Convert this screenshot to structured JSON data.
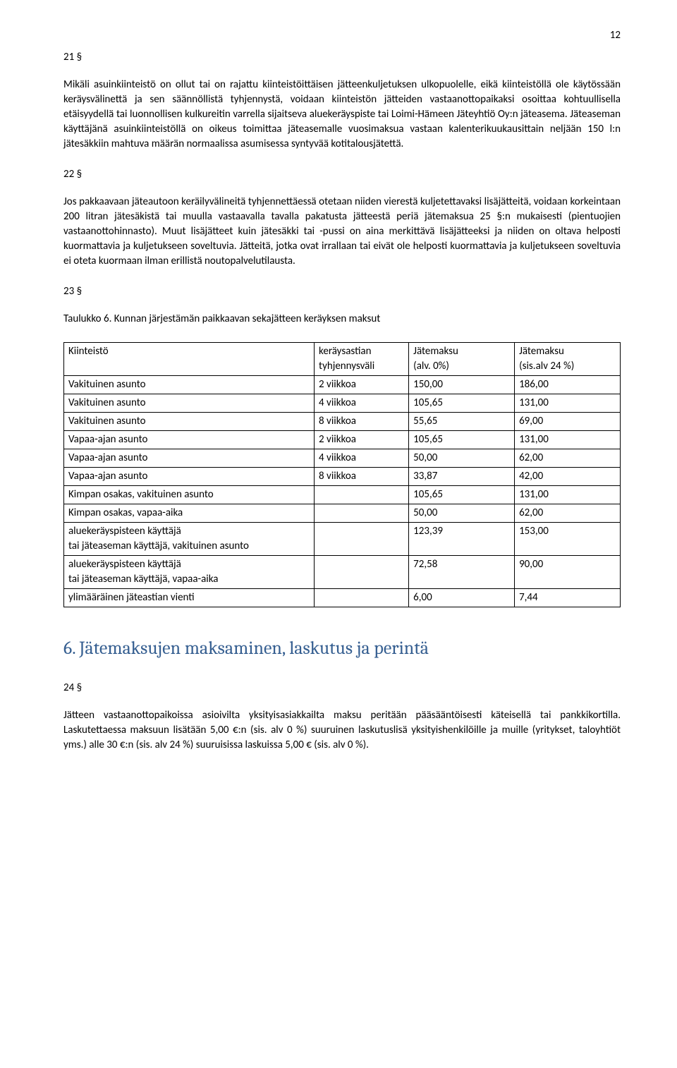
{
  "page_number": "12",
  "s21": {
    "num": "21 §",
    "para": "Mikäli asuinkiinteistö on ollut tai on rajattu kiinteistöittäisen jätteenkuljetuksen ulkopuolelle, eikä kiinteistöllä ole käytössään keräysvälinettä ja sen säännöllistä tyhjennystä, voidaan kiinteistön jätteiden vastaanottopaikaksi osoittaa kohtuullisella etäisyydellä tai luonnollisen kulkureitin varrella sijaitseva aluekeräyspiste tai Loimi-Hämeen Jäteyhtiö Oy:n jäteasema. Jäteaseman käyttäjänä asuinkiinteistöllä on oikeus toimittaa jäteasemalle vuosimaksua vastaan kalenterikuukausittain neljään 150 l:n jätesäkkiin mahtuva määrän normaalissa asumisessa syntyvää kotitalousjätettä."
  },
  "s22": {
    "num": "22 §",
    "para": "Jos pakkaavaan jäteautoon keräilyvälineitä tyhjennettäessä otetaan niiden vierestä kuljetettavaksi lisäjätteitä, voidaan korkeintaan 200 litran jätesäkistä tai muulla vastaavalla tavalla pakatusta jätteestä periä jätemaksua 25 §:n mukaisesti (pientuojien vastaanottohinnasto). Muut lisäjätteet kuin jätesäkki tai -pussi on aina merkittävä lisäjätteeksi ja niiden on oltava helposti kuormattavia ja kuljetukseen soveltuvia. Jätteitä, jotka ovat irrallaan tai eivät ole helposti kuormattavia ja kuljetukseen soveltuvia ei oteta kuormaan ilman erillistä noutopalvelutilausta."
  },
  "s23": {
    "num": "23 §",
    "caption": "Taulukko 6. Kunnan järjestämän paikkaavan sekajätteen keräyksen maksut"
  },
  "table6": {
    "headers": {
      "c1l1": "Kiinteistö",
      "c1l2": "",
      "c2l1": "keräysastian",
      "c2l2": "tyhjennysväli",
      "c3l1": "Jätemaksu",
      "c3l2": "(alv. 0%)",
      "c4l1": "Jätemaksu",
      "c4l2": "(sis.alv 24 %)"
    },
    "rows": [
      {
        "c1": "Vakituinen asunto",
        "c2": "2 viikkoa",
        "c3": "150,00",
        "c4": "186,00"
      },
      {
        "c1": "Vakituinen asunto",
        "c2": "4 viikkoa",
        "c3": "105,65",
        "c4": "131,00"
      },
      {
        "c1": "Vakituinen asunto",
        "c2": "8 viikkoa",
        "c3": "55,65",
        "c4": "69,00"
      },
      {
        "c1": "Vapaa-ajan asunto",
        "c2": "2 viikkoa",
        "c3": "105,65",
        "c4": "131,00"
      },
      {
        "c1": "Vapaa-ajan asunto",
        "c2": "4 viikkoa",
        "c3": "50,00",
        "c4": "62,00"
      },
      {
        "c1": "Vapaa-ajan asunto",
        "c2": "8 viikkoa",
        "c3": "33,87",
        "c4": "42,00"
      },
      {
        "c1": "Kimpan osakas, vakituinen asunto",
        "c2": "",
        "c3": "105,65",
        "c4": "131,00"
      },
      {
        "c1": "Kimpan osakas, vapaa-aika",
        "c2": "",
        "c3": "50,00",
        "c4": "62,00"
      },
      {
        "c1a": "aluekeräyspisteen käyttäjä",
        "c1b": "tai jäteaseman käyttäjä, vakituinen asunto",
        "c2": "",
        "c3": "123,39",
        "c4": "153,00"
      },
      {
        "c1a": "aluekeräyspisteen käyttäjä",
        "c1b": "tai jäteaseman käyttäjä, vapaa-aika",
        "c2": "",
        "c3": "72,58",
        "c4": "90,00"
      },
      {
        "c1": "ylimääräinen jäteastian vienti",
        "c2": "",
        "c3": "6,00",
        "c4": "7,44"
      }
    ]
  },
  "h6": "6.  Jätemaksujen maksaminen, laskutus ja perintä",
  "s24": {
    "num": "24 §",
    "para": "Jätteen vastaanottopaikoissa asioivilta yksityisasiakkailta maksu peritään pääsääntöisesti käteisellä tai pankkikortilla. Laskutettaessa maksuun lisätään 5,00 €:n (sis. alv 0 %) suuruinen laskutuslisä yksityishenkilöille ja muille (yritykset, taloyhtiöt yms.) alle 30 €:n (sis. alv 24 %) suuruisissa laskuissa 5,00 € (sis. alv 0 %)."
  }
}
